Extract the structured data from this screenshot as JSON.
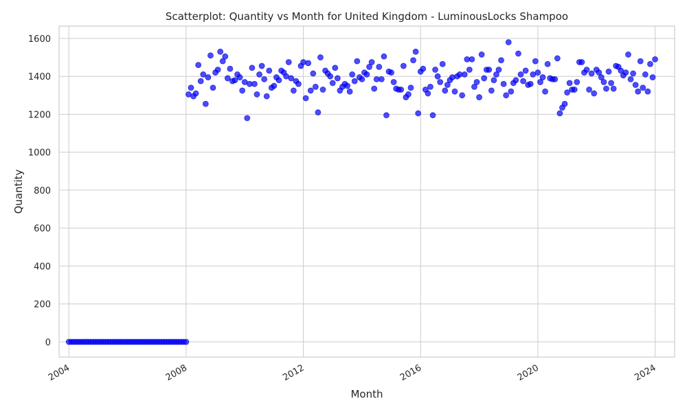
{
  "chart_data": {
    "type": "scatter",
    "title": "Scatterplot: Quantity vs Month for United Kingdom - LuminousLocks Shampoo",
    "xlabel": "Month",
    "ylabel": "Quantity",
    "xlim": [
      "2003-09",
      "2024-09"
    ],
    "ylim": [
      -80,
      1665
    ],
    "xticks": [
      "2004",
      "2008",
      "2012",
      "2016",
      "2020",
      "2024"
    ],
    "yticks": [
      0,
      200,
      400,
      600,
      800,
      1000,
      1200,
      1400,
      1600
    ],
    "grid": true,
    "point_color": "#0000ff",
    "x_start": "2004-01",
    "x_end": "2023-12",
    "values": [
      0,
      0,
      0,
      0,
      0,
      0,
      0,
      0,
      0,
      0,
      0,
      0,
      0,
      0,
      0,
      0,
      0,
      0,
      0,
      0,
      0,
      0,
      0,
      0,
      0,
      0,
      0,
      0,
      0,
      0,
      0,
      0,
      0,
      0,
      0,
      0,
      0,
      0,
      0,
      0,
      0,
      0,
      0,
      0,
      0,
      0,
      0,
      0,
      0,
      1305,
      1340,
      1295,
      1310,
      1460,
      1375,
      1410,
      1255,
      1395,
      1510,
      1340,
      1420,
      1435,
      1530,
      1480,
      1505,
      1390,
      1440,
      1375,
      1380,
      1410,
      1395,
      1325,
      1370,
      1180,
      1360,
      1445,
      1360,
      1305,
      1410,
      1455,
      1385,
      1295,
      1430,
      1340,
      1350,
      1395,
      1380,
      1430,
      1420,
      1400,
      1475,
      1390,
      1325,
      1375,
      1360,
      1455,
      1475,
      1285,
      1470,
      1325,
      1415,
      1345,
      1210,
      1500,
      1330,
      1430,
      1415,
      1400,
      1365,
      1445,
      1390,
      1325,
      1345,
      1360,
      1350,
      1320,
      1410,
      1375,
      1480,
      1395,
      1385,
      1420,
      1410,
      1450,
      1475,
      1335,
      1385,
      1450,
      1385,
      1505,
      1195,
      1425,
      1420,
      1370,
      1335,
      1330,
      1330,
      1455,
      1290,
      1305,
      1340,
      1485,
      1530,
      1205,
      1425,
      1440,
      1330,
      1310,
      1345,
      1195,
      1435,
      1400,
      1370,
      1465,
      1325,
      1355,
      1380,
      1395,
      1320,
      1400,
      1410,
      1300,
      1410,
      1490,
      1435,
      1490,
      1345,
      1370,
      1290,
      1515,
      1390,
      1435,
      1435,
      1325,
      1380,
      1410,
      1435,
      1485,
      1360,
      1300,
      1580,
      1320,
      1365,
      1380,
      1520,
      1410,
      1375,
      1430,
      1355,
      1360,
      1410,
      1480,
      1420,
      1370,
      1395,
      1320,
      1465,
      1390,
      1385,
      1385,
      1495,
      1205,
      1235,
      1255,
      1315,
      1365,
      1330,
      1330,
      1370,
      1475,
      1475,
      1420,
      1435,
      1330,
      1415,
      1310,
      1435,
      1420,
      1395,
      1370,
      1335,
      1425,
      1365,
      1335,
      1455,
      1450,
      1430,
      1405,
      1420,
      1515,
      1385,
      1415,
      1355,
      1320,
      1480,
      1340,
      1410,
      1320,
      1465,
      1395,
      1490
    ]
  }
}
